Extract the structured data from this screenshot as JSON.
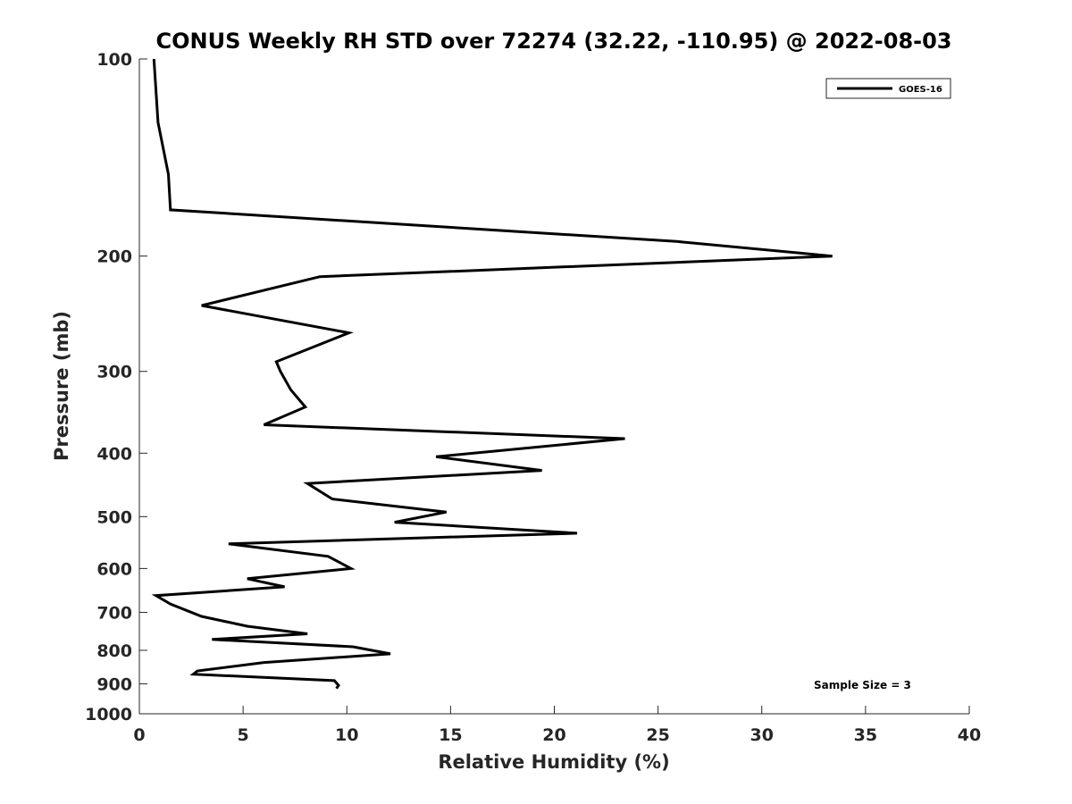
{
  "chart_data": {
    "type": "line",
    "title": "CONUS Weekly RH STD over 72274 (32.22, -110.95) @ 2022-08-03",
    "xlabel": "Relative Humidity (%)",
    "ylabel": "Pressure (mb)",
    "xlim": [
      0,
      40
    ],
    "ylim": [
      100,
      1000
    ],
    "yscale": "log",
    "y_reversed": true,
    "grid": false,
    "legend_location": "top-right",
    "xticks": [
      0,
      5,
      10,
      15,
      20,
      25,
      30,
      35,
      40
    ],
    "xtick_labels": [
      "0",
      "5",
      "10",
      "15",
      "20",
      "25",
      "30",
      "35",
      "40"
    ],
    "yticks": [
      100,
      200,
      300,
      400,
      500,
      600,
      700,
      800,
      900,
      1000
    ],
    "ytick_labels": [
      "100",
      "200",
      "300",
      "400",
      "500",
      "600",
      "700",
      "800",
      "900",
      "1000"
    ],
    "series": [
      {
        "name": "GOES-16",
        "color": "#000000",
        "x": [
          0.7,
          0.9,
          1.4,
          1.5,
          25.9,
          33.4,
          8.7,
          3.0,
          10.1,
          6.6,
          6.8,
          7.3,
          8.0,
          6.0,
          23.4,
          14.3,
          19.4,
          8.1,
          9.3,
          14.8,
          12.3,
          21.1,
          4.3,
          9.1,
          10.2,
          5.2,
          7.0,
          0.8,
          1.5,
          3.0,
          5.2,
          8.1,
          3.5,
          10.3,
          12.1,
          6.0,
          2.8,
          2.6,
          9.4,
          9.6,
          9.5
        ],
        "y": [
          100,
          125,
          150,
          170,
          190,
          200,
          215,
          238,
          262,
          290,
          300,
          320,
          340,
          362,
          380,
          405,
          425,
          445,
          470,
          492,
          510,
          530,
          550,
          575,
          600,
          622,
          640,
          660,
          680,
          710,
          735,
          755,
          770,
          790,
          810,
          835,
          860,
          870,
          890,
          905,
          915
        ]
      }
    ],
    "annotations": [
      {
        "text": "Sample Size = 3",
        "position": "bottom-right"
      }
    ]
  }
}
